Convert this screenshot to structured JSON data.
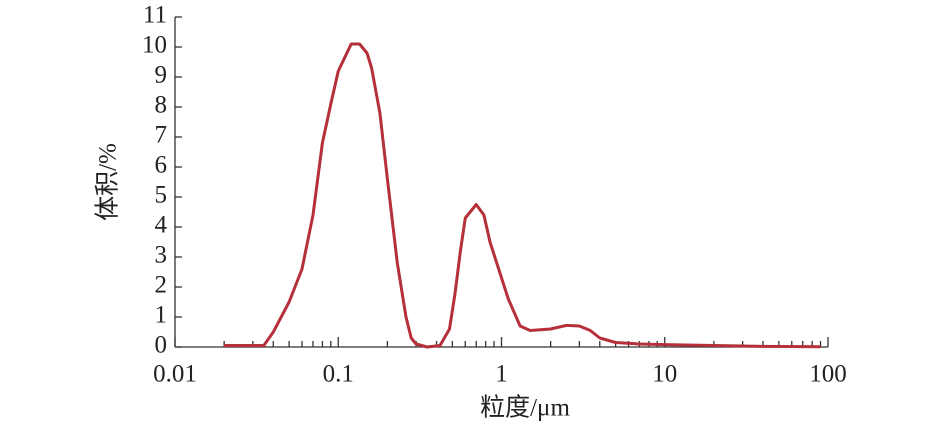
{
  "chart_data": {
    "type": "line",
    "x_label": "粒度/μm",
    "y_label": "体积/%",
    "x": [
      0.02,
      0.035,
      0.04,
      0.05,
      0.06,
      0.07,
      0.08,
      0.09,
      0.1,
      0.12,
      0.135,
      0.15,
      0.16,
      0.18,
      0.2,
      0.23,
      0.26,
      0.28,
      0.3,
      0.35,
      0.42,
      0.48,
      0.52,
      0.56,
      0.6,
      0.7,
      0.78,
      0.85,
      1.1,
      1.3,
      1.5,
      2.0,
      2.5,
      3.0,
      3.5,
      4.0,
      5,
      7,
      10,
      20,
      40,
      90
    ],
    "series": [
      {
        "name": "体积",
        "color": "#b5303a",
        "values": [
          0.05,
          0.05,
          0.5,
          1.5,
          2.6,
          4.4,
          6.8,
          8.1,
          9.2,
          10.1,
          10.1,
          9.8,
          9.3,
          7.8,
          5.6,
          2.8,
          1.0,
          0.3,
          0.1,
          0.0,
          0.05,
          0.6,
          1.8,
          3.2,
          4.3,
          4.75,
          4.4,
          3.5,
          1.6,
          0.7,
          0.55,
          0.6,
          0.72,
          0.7,
          0.55,
          0.3,
          0.15,
          0.1,
          0.08,
          0.05,
          0.02,
          0.01
        ]
      }
    ],
    "log_x": true,
    "xlim": [
      0.01,
      100
    ],
    "xticks": [
      0.01,
      0.1,
      1,
      10,
      100
    ],
    "xminorticks": [
      0.02,
      0.03,
      0.04,
      0.05,
      0.06,
      0.07,
      0.08,
      0.09,
      0.2,
      0.3,
      0.4,
      0.5,
      0.6,
      0.7,
      0.8,
      0.9,
      2,
      3,
      4,
      5,
      6,
      7,
      8,
      9,
      20,
      30,
      40,
      50,
      60,
      70,
      80,
      90
    ],
    "ylim": [
      0,
      11
    ],
    "yticks": [
      0,
      1,
      2,
      3,
      4,
      5,
      6,
      7,
      8,
      9,
      10,
      11
    ]
  }
}
